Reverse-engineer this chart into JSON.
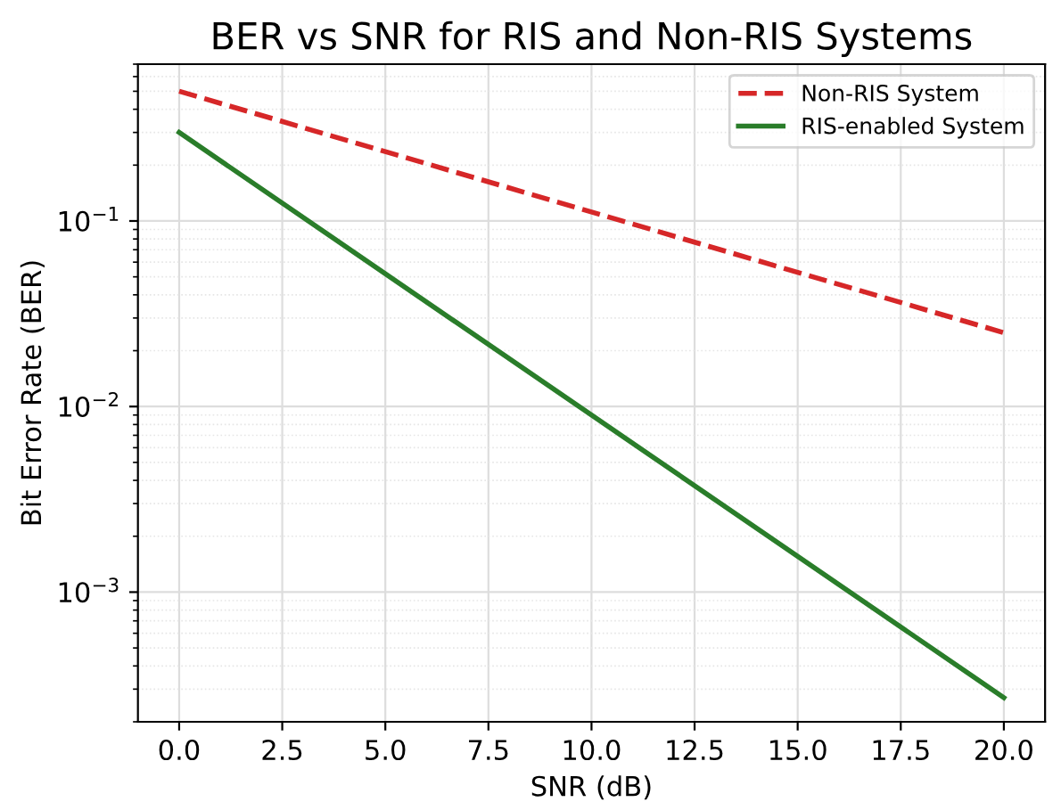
{
  "chart_data": {
    "type": "line",
    "title": "BER vs SNR for RIS and Non-RIS Systems",
    "xlabel": "SNR (dB)",
    "ylabel": "Bit Error Rate (BER)",
    "log": "y",
    "grid": true,
    "legend": "top right",
    "xlim": [
      -1,
      21
    ],
    "xticks": [
      {
        "value": 0,
        "label": "0.0"
      },
      {
        "value": 2.5,
        "label": "2.5"
      },
      {
        "value": 5,
        "label": "5.0"
      },
      {
        "value": 7.5,
        "label": "7.5"
      },
      {
        "value": 10,
        "label": "10.0"
      },
      {
        "value": 12.5,
        "label": "12.5"
      },
      {
        "value": 15,
        "label": "15.0"
      },
      {
        "value": 17.5,
        "label": "17.5"
      },
      {
        "value": 20,
        "label": "20.0"
      }
    ],
    "ylim": [
      0.0002,
      0.7
    ],
    "yticks": [
      {
        "value": 0.001,
        "label": "10$^{−3}$"
      },
      {
        "value": 0.01,
        "label": "10$^{−2}$"
      },
      {
        "value": 0.1,
        "label": "10$^{−1}$"
      }
    ],
    "x": [
      0,
      20
    ],
    "series": [
      {
        "name": "Non-RIS System",
        "color": "#d62728",
        "line_style": "dashed",
        "values": [
          0.5,
          0.025
        ]
      },
      {
        "name": "RIS-enabled System",
        "color": "#2a7d2a",
        "line_style": "solid",
        "values": [
          0.3,
          0.00027
        ]
      }
    ]
  }
}
